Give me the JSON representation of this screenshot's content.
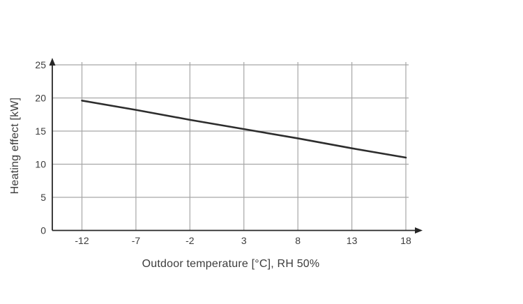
{
  "chart_data": {
    "type": "line",
    "title": "",
    "xlabel": "Outdoor temperature [°C], RH 50%",
    "ylabel": "Heating effect [kW]",
    "x": [
      -12,
      -7,
      -2,
      3,
      8,
      13,
      18
    ],
    "series": [
      {
        "name": "heating-effect",
        "values": [
          19.6,
          18.2,
          16.7,
          15.3,
          13.9,
          12.4,
          11.0
        ]
      }
    ],
    "xticks": [
      "-12",
      "-7",
      "-2",
      "3",
      "8",
      "13",
      "18"
    ],
    "xtick_values": [
      -12,
      -7,
      -2,
      3,
      8,
      13,
      18
    ],
    "yticks": [
      "0",
      "5",
      "10",
      "15",
      "20",
      "25"
    ],
    "ytick_values": [
      0,
      5,
      10,
      15,
      20,
      25
    ],
    "xlim": [
      -12,
      18
    ],
    "ylim": [
      0,
      25
    ],
    "grid": true,
    "legend_position": "none",
    "colors": {
      "line": "#2d2d2d",
      "grid": "#a6a6a6",
      "axis": "#262626",
      "text": "#3c3c3c",
      "background": "#ffffff"
    }
  }
}
